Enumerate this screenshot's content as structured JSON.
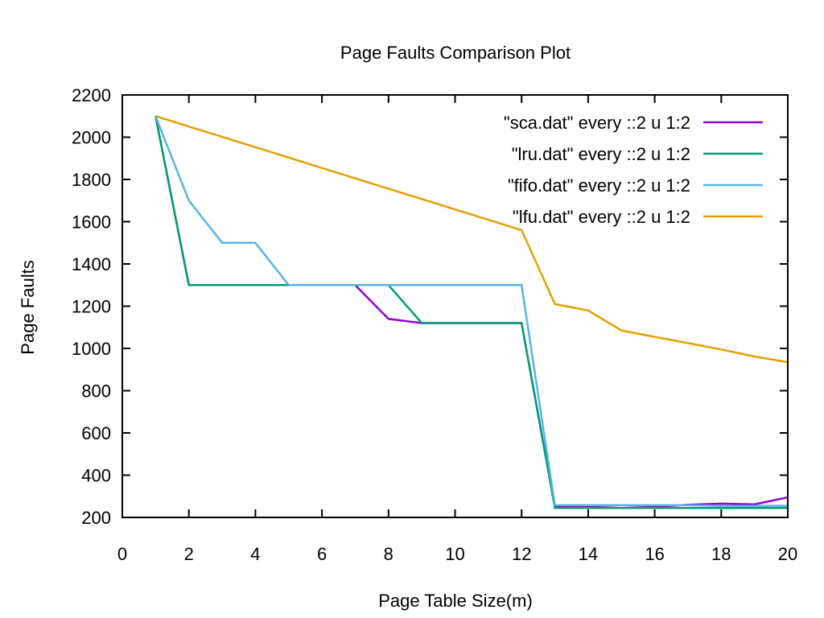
{
  "chart_data": {
    "type": "line",
    "title": "Page Faults Comparison Plot",
    "xlabel": "Page Table Size(m)",
    "ylabel": "Page Faults",
    "xlim": [
      0,
      20
    ],
    "ylim": [
      200,
      2200
    ],
    "x_ticks": [
      0,
      2,
      4,
      6,
      8,
      10,
      12,
      14,
      16,
      18,
      20
    ],
    "y_ticks": [
      200,
      400,
      600,
      800,
      1000,
      1200,
      1400,
      1600,
      1800,
      2000,
      2200
    ],
    "grid": false,
    "legend_position": "top-right",
    "series": [
      {
        "name": "\"sca.dat\" every ::2 u 1:2",
        "color": "#9400d3",
        "x": [
          1,
          2,
          3,
          4,
          5,
          6,
          7,
          8,
          9,
          10,
          11,
          12,
          13,
          14,
          15,
          16,
          17,
          18,
          19,
          20
        ],
        "y": [
          2100,
          1300,
          1300,
          1300,
          1300,
          1300,
          1300,
          1140,
          1120,
          1120,
          1120,
          1120,
          250,
          250,
          245,
          250,
          260,
          265,
          262,
          295
        ]
      },
      {
        "name": "\"lru.dat\" every ::2 u 1:2",
        "color": "#009e73",
        "x": [
          1,
          2,
          3,
          4,
          5,
          6,
          7,
          8,
          9,
          10,
          11,
          12,
          13,
          14,
          15,
          16,
          17,
          18,
          19,
          20
        ],
        "y": [
          2100,
          1300,
          1300,
          1300,
          1300,
          1300,
          1300,
          1300,
          1120,
          1120,
          1120,
          1120,
          245,
          245,
          245,
          245,
          245,
          245,
          245,
          245
        ]
      },
      {
        "name": "\"fifo.dat\" every ::2 u 1:2",
        "color": "#56b4e9",
        "x": [
          1,
          2,
          3,
          4,
          5,
          6,
          7,
          8,
          9,
          10,
          11,
          12,
          13,
          14,
          15,
          16,
          17,
          18,
          19,
          20
        ],
        "y": [
          2100,
          1700,
          1500,
          1500,
          1300,
          1300,
          1300,
          1300,
          1300,
          1300,
          1300,
          1300,
          258,
          258,
          258,
          258,
          258,
          255,
          255,
          255
        ]
      },
      {
        "name": "\"lfu.dat\" every ::2 u 1:2",
        "color": "#e69f00",
        "x": [
          1,
          12,
          13,
          14,
          15,
          16,
          17,
          18,
          19,
          20
        ],
        "y": [
          2100,
          1560,
          1210,
          1180,
          1085,
          1055,
          1025,
          995,
          962,
          935
        ]
      }
    ]
  }
}
